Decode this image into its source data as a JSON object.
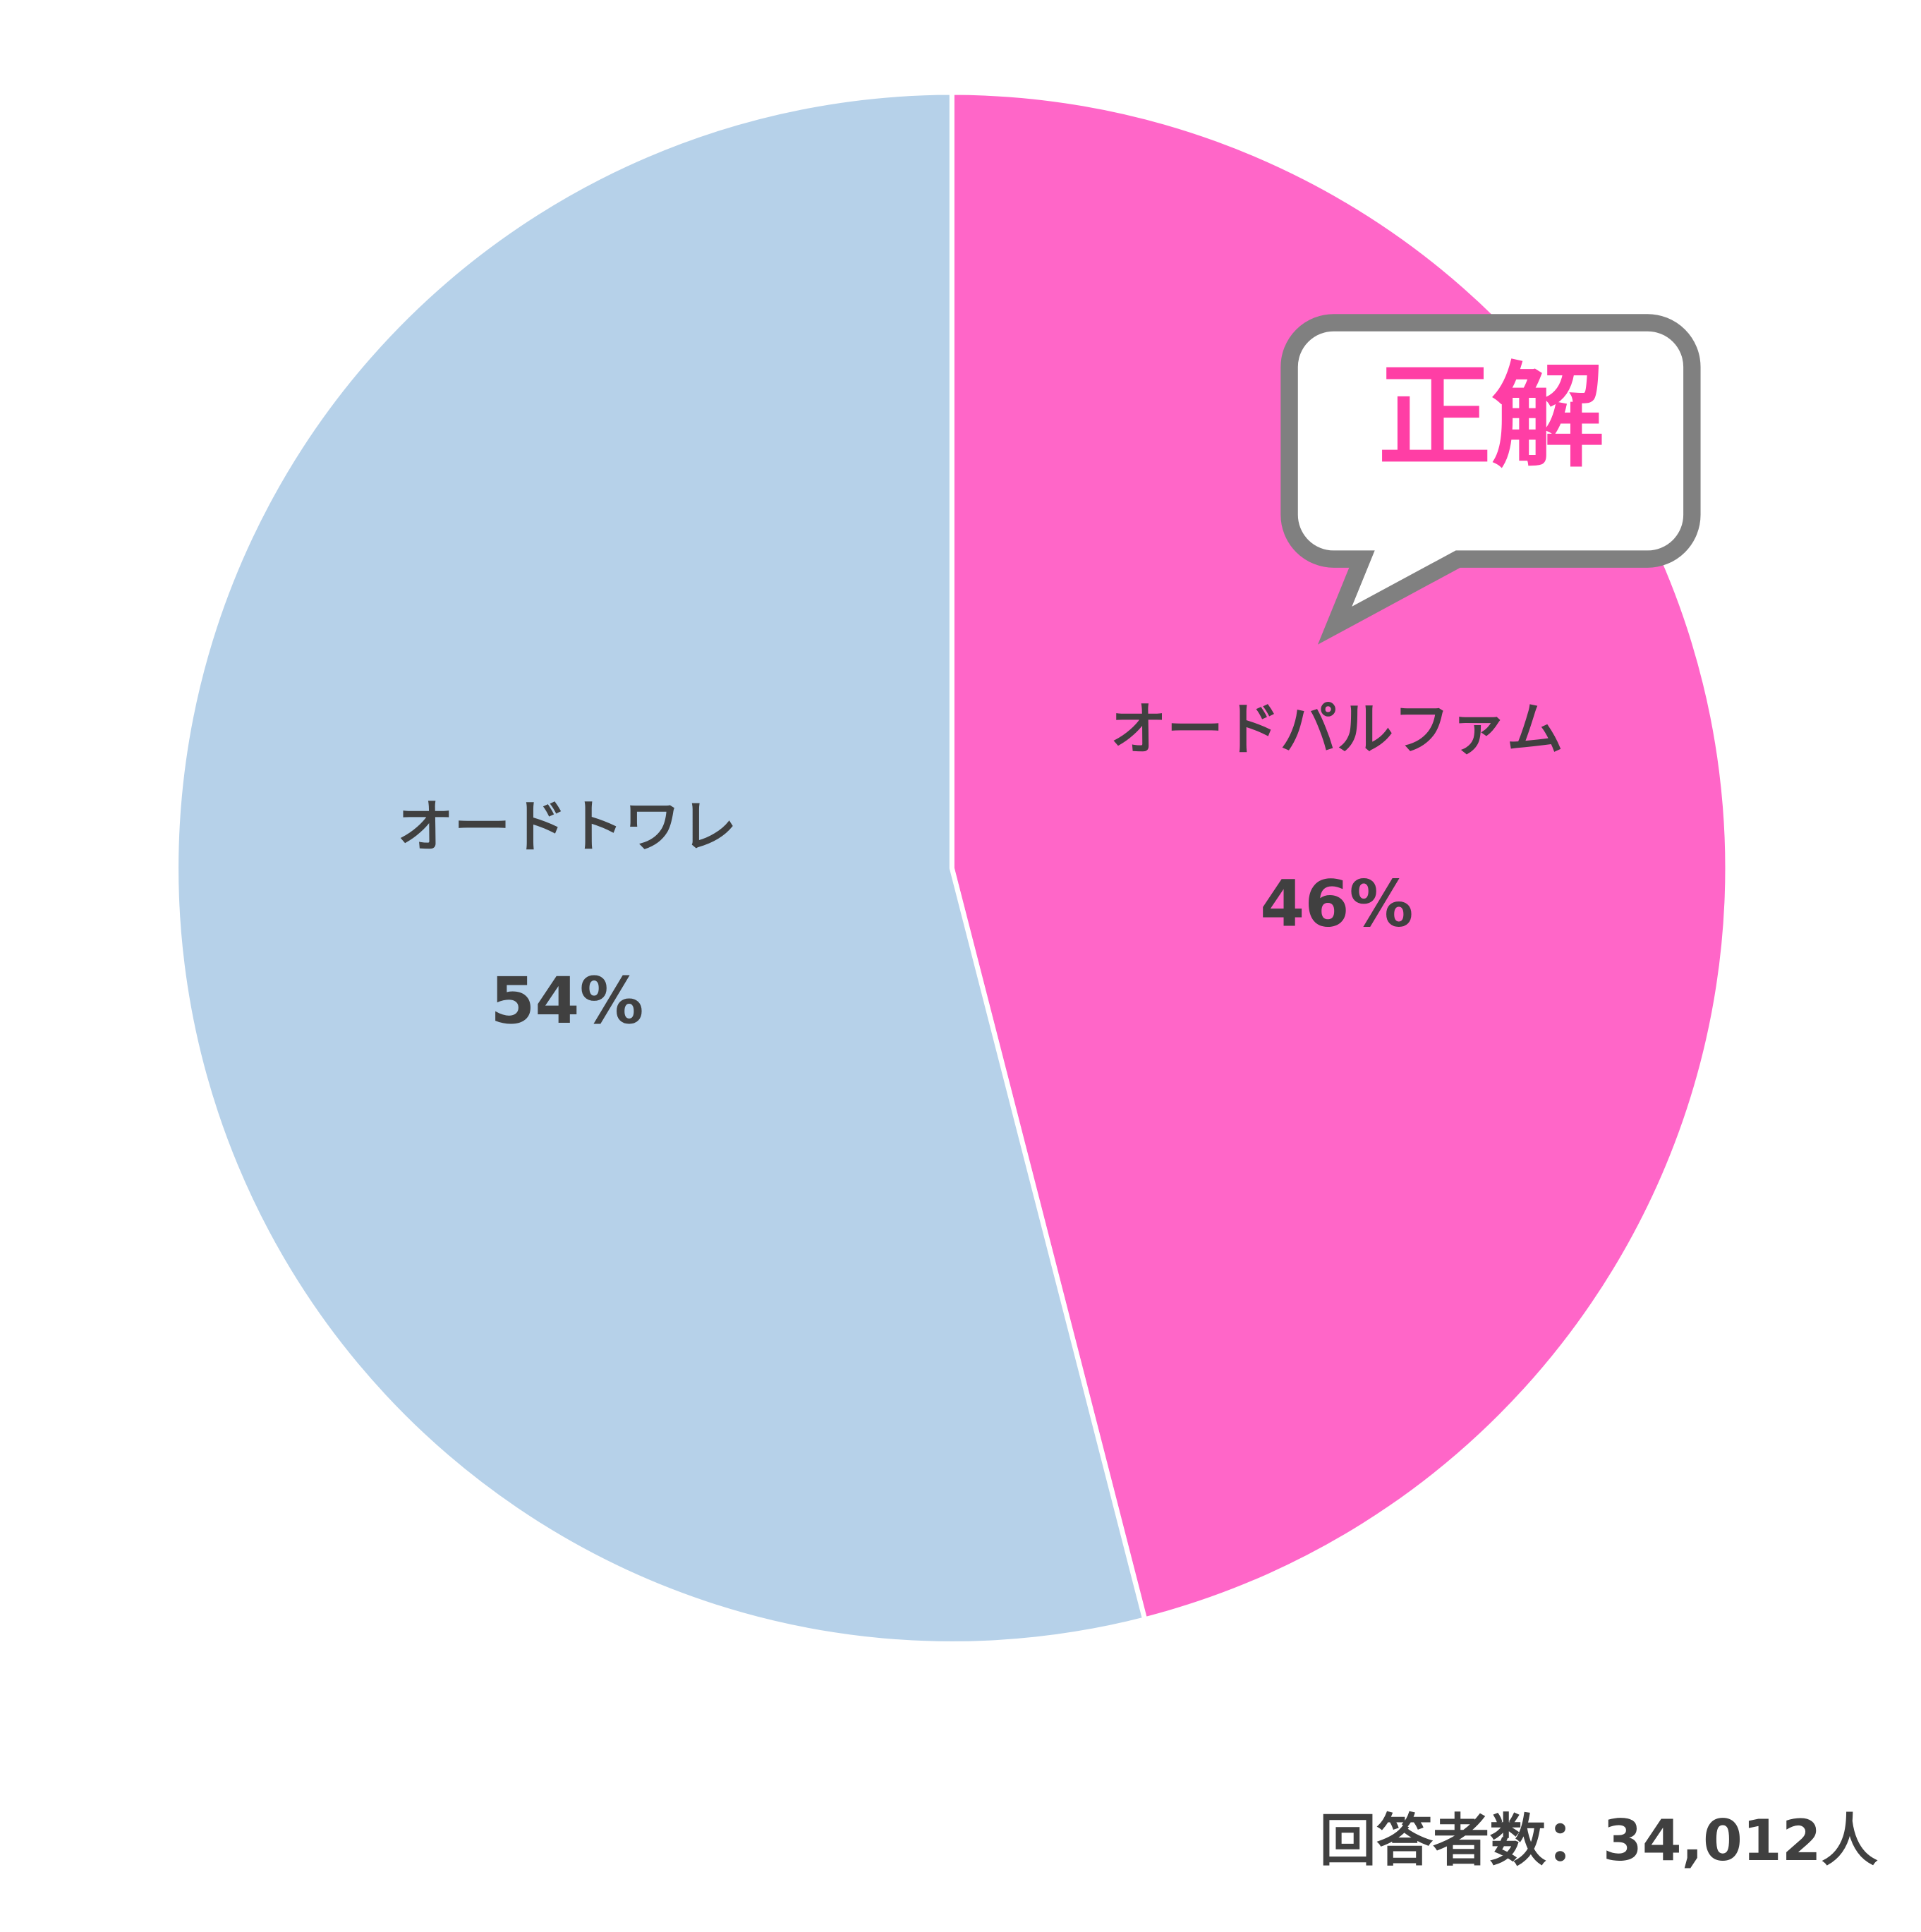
{
  "chart_data": {
    "type": "pie",
    "categories": [
      "オードパルファム",
      "オードトワレ"
    ],
    "values": [
      46,
      54
    ],
    "value_labels": [
      "46%",
      "54%"
    ],
    "colors": [
      "#ff66c8",
      "#b6d1e9"
    ],
    "annotation": "正解",
    "footnote": "回答者数：34,012人"
  }
}
